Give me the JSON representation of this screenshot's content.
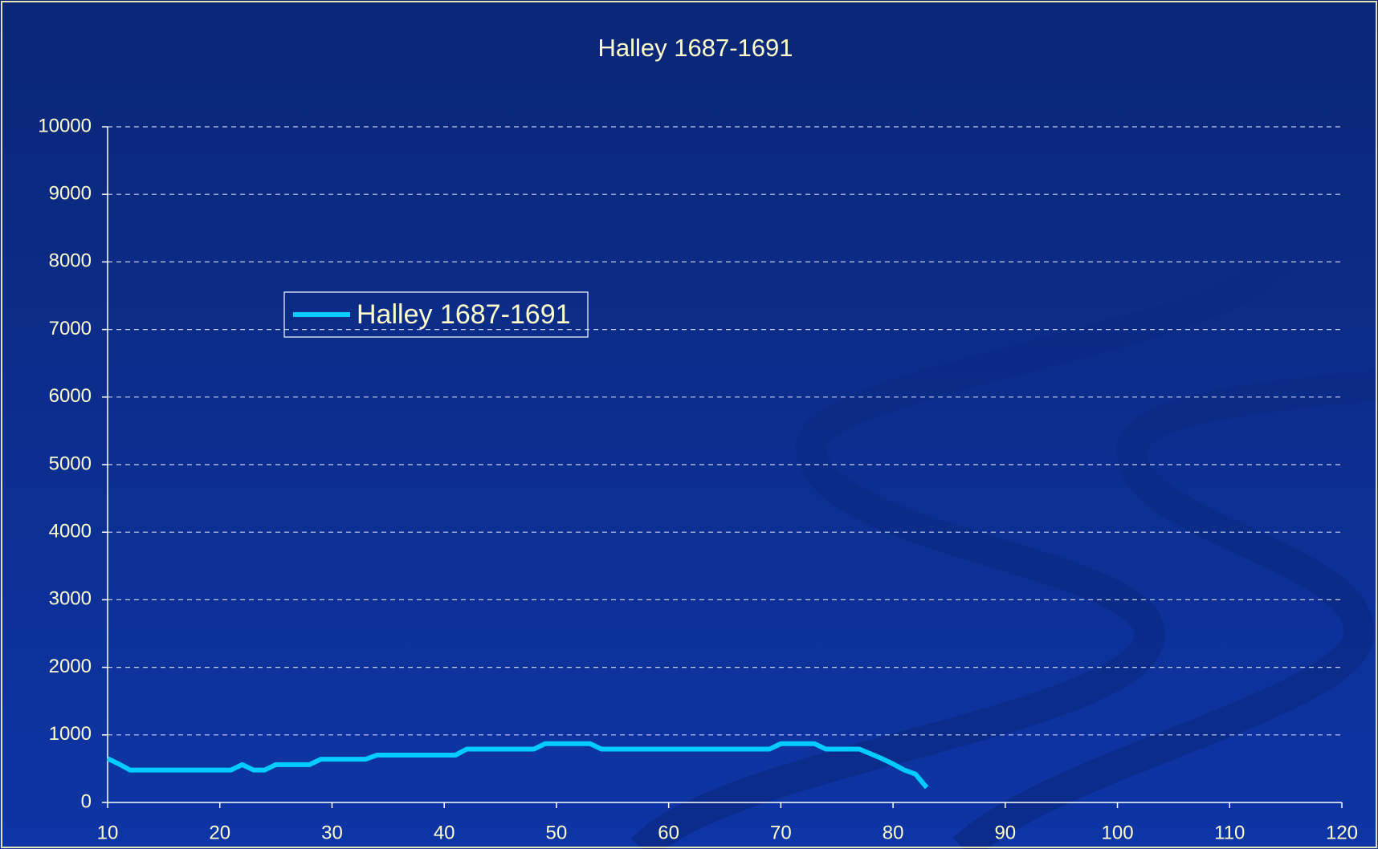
{
  "chart_data": {
    "type": "line",
    "title": "Halley 1687-1691",
    "x": [
      10,
      11,
      12,
      13,
      14,
      15,
      16,
      17,
      18,
      19,
      20,
      21,
      22,
      23,
      24,
      25,
      26,
      27,
      28,
      29,
      30,
      31,
      32,
      33,
      34,
      35,
      36,
      37,
      38,
      39,
      40,
      41,
      42,
      43,
      44,
      45,
      46,
      47,
      48,
      49,
      50,
      51,
      52,
      53,
      54,
      55,
      56,
      57,
      58,
      59,
      60,
      61,
      62,
      63,
      64,
      65,
      66,
      67,
      68,
      69,
      70,
      71,
      72,
      73,
      74,
      75,
      76,
      77,
      78,
      79,
      80,
      81,
      82,
      83
    ],
    "series": [
      {
        "name": "Halley 1687-1691",
        "color": "#00ccff",
        "values": [
          650,
          570,
          480,
          480,
          480,
          480,
          480,
          480,
          480,
          480,
          480,
          480,
          560,
          480,
          480,
          560,
          560,
          560,
          560,
          640,
          640,
          640,
          640,
          640,
          700,
          700,
          700,
          700,
          700,
          700,
          700,
          700,
          790,
          790,
          790,
          790,
          790,
          790,
          790,
          870,
          870,
          870,
          870,
          870,
          790,
          790,
          790,
          790,
          790,
          790,
          790,
          790,
          790,
          790,
          790,
          790,
          790,
          790,
          790,
          790,
          870,
          870,
          870,
          870,
          790,
          790,
          790,
          790,
          720,
          650,
          570,
          480,
          420,
          220
        ]
      }
    ],
    "xlim": [
      10,
      120
    ],
    "xticks": [
      10,
      20,
      30,
      40,
      50,
      60,
      70,
      80,
      90,
      100,
      110,
      120
    ],
    "ylim": [
      0,
      10000
    ],
    "yticks": [
      0,
      1000,
      2000,
      3000,
      4000,
      5000,
      6000,
      7000,
      8000,
      9000,
      10000
    ],
    "grid": true,
    "legend": "upper left"
  }
}
